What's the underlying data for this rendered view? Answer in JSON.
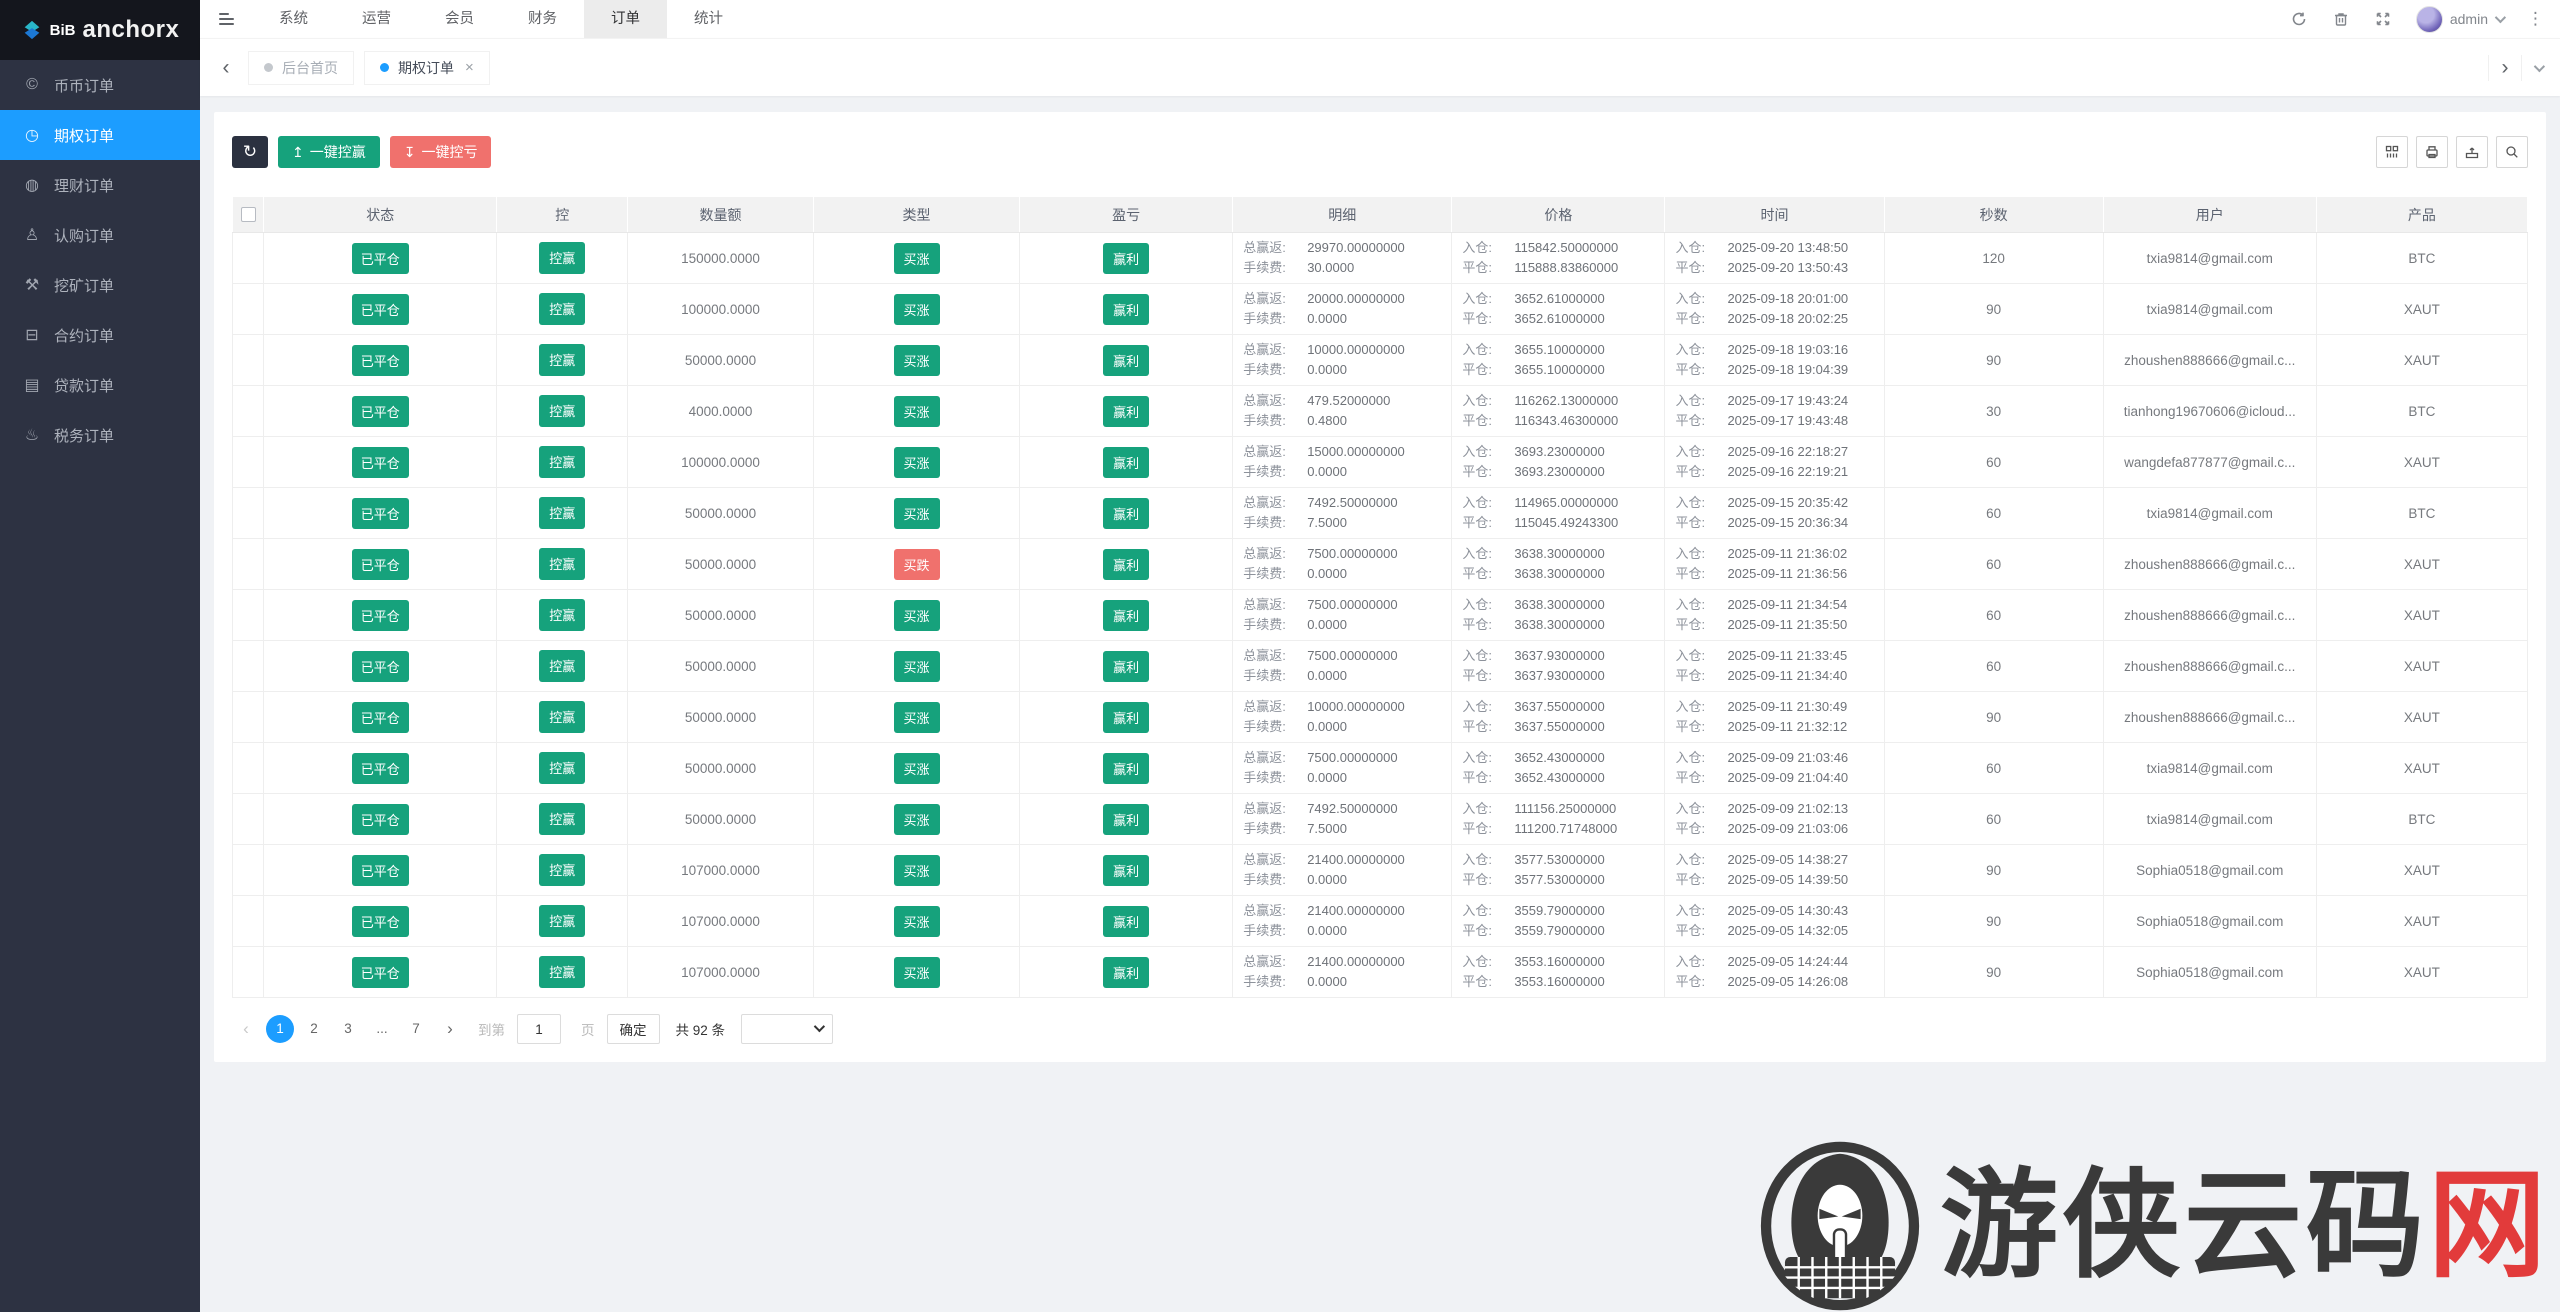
{
  "brand": {
    "short": "BiB",
    "name": "anchorx"
  },
  "topnav": {
    "items": [
      {
        "label": "系统",
        "active": false
      },
      {
        "label": "运营",
        "active": false
      },
      {
        "label": "会员",
        "active": false
      },
      {
        "label": "财务",
        "active": false
      },
      {
        "label": "订单",
        "active": true
      },
      {
        "label": "统计",
        "active": false
      }
    ],
    "user": "admin"
  },
  "sidebar": {
    "items": [
      {
        "id": "coin-orders",
        "label": "币币订单",
        "icon": "coins-icon",
        "glyph": "©",
        "active": false
      },
      {
        "id": "option-orders",
        "label": "期权订单",
        "icon": "clock-icon",
        "glyph": "◷",
        "active": true
      },
      {
        "id": "finance-orders",
        "label": "理财订单",
        "icon": "wallet-icon",
        "glyph": "◍",
        "active": false
      },
      {
        "id": "subscribe-orders",
        "label": "认购订单",
        "icon": "person-icon",
        "glyph": "♙",
        "active": false
      },
      {
        "id": "mining-orders",
        "label": "挖矿订单",
        "icon": "pickaxe-icon",
        "glyph": "⚒",
        "active": false
      },
      {
        "id": "contract-orders",
        "label": "合约订单",
        "icon": "monitor-icon",
        "glyph": "⊟",
        "active": false
      },
      {
        "id": "loan-orders",
        "label": "贷款订单",
        "icon": "banknote-icon",
        "glyph": "▤",
        "active": false
      },
      {
        "id": "tax-orders",
        "label": "税务订单",
        "icon": "stamp-icon",
        "glyph": "♨",
        "active": false
      }
    ]
  },
  "tabs": [
    {
      "label": "后台首页",
      "active": false,
      "closable": false
    },
    {
      "label": "期权订单",
      "active": true,
      "closable": true
    }
  ],
  "toolbar": {
    "refresh_glyph": "↻",
    "win_all_icon": "↥",
    "win_all": "一键控赢",
    "lose_all_icon": "↧",
    "lose_all": "一键控亏"
  },
  "table": {
    "headers": [
      "状态",
      "控",
      "数量额",
      "类型",
      "盈亏",
      "明细",
      "价格",
      "时间",
      "秒数",
      "用户",
      "产品"
    ],
    "detail_labels": {
      "total_win": "总赢返:",
      "fee": "手续费:",
      "open": "入仓:",
      "close": "平仓:"
    },
    "rows": [
      {
        "status": "已平仓",
        "control": "控赢",
        "amount": "150000.0000",
        "type": "买涨",
        "dir": "up",
        "profit": "赢利",
        "win": "29970.00000000",
        "fee": "30.0000",
        "open_price": "115842.50000000",
        "close_price": "115888.83860000",
        "open_time": "2025-09-20 13:48:50",
        "close_time": "2025-09-20 13:50:43",
        "seconds": "120",
        "user": "txia9814@gmail.com",
        "product": "BTC"
      },
      {
        "status": "已平仓",
        "control": "控赢",
        "amount": "100000.0000",
        "type": "买涨",
        "dir": "up",
        "profit": "赢利",
        "win": "20000.00000000",
        "fee": "0.0000",
        "open_price": "3652.61000000",
        "close_price": "3652.61000000",
        "open_time": "2025-09-18 20:01:00",
        "close_time": "2025-09-18 20:02:25",
        "seconds": "90",
        "user": "txia9814@gmail.com",
        "product": "XAUT"
      },
      {
        "status": "已平仓",
        "control": "控赢",
        "amount": "50000.0000",
        "type": "买涨",
        "dir": "up",
        "profit": "赢利",
        "win": "10000.00000000",
        "fee": "0.0000",
        "open_price": "3655.10000000",
        "close_price": "3655.10000000",
        "open_time": "2025-09-18 19:03:16",
        "close_time": "2025-09-18 19:04:39",
        "seconds": "90",
        "user": "zhoushen888666@gmail.c...",
        "product": "XAUT"
      },
      {
        "status": "已平仓",
        "control": "控赢",
        "amount": "4000.0000",
        "type": "买涨",
        "dir": "up",
        "profit": "赢利",
        "win": "479.52000000",
        "fee": "0.4800",
        "open_price": "116262.13000000",
        "close_price": "116343.46300000",
        "open_time": "2025-09-17 19:43:24",
        "close_time": "2025-09-17 19:43:48",
        "seconds": "30",
        "user": "tianhong19670606@icloud...",
        "product": "BTC"
      },
      {
        "status": "已平仓",
        "control": "控赢",
        "amount": "100000.0000",
        "type": "买涨",
        "dir": "up",
        "profit": "赢利",
        "win": "15000.00000000",
        "fee": "0.0000",
        "open_price": "3693.23000000",
        "close_price": "3693.23000000",
        "open_time": "2025-09-16 22:18:27",
        "close_time": "2025-09-16 22:19:21",
        "seconds": "60",
        "user": "wangdefa877877@gmail.c...",
        "product": "XAUT"
      },
      {
        "status": "已平仓",
        "control": "控赢",
        "amount": "50000.0000",
        "type": "买涨",
        "dir": "up",
        "profit": "赢利",
        "win": "7492.50000000",
        "fee": "7.5000",
        "open_price": "114965.00000000",
        "close_price": "115045.49243300",
        "open_time": "2025-09-15 20:35:42",
        "close_time": "2025-09-15 20:36:34",
        "seconds": "60",
        "user": "txia9814@gmail.com",
        "product": "BTC"
      },
      {
        "status": "已平仓",
        "control": "控赢",
        "amount": "50000.0000",
        "type": "买跌",
        "dir": "down",
        "profit": "赢利",
        "win": "7500.00000000",
        "fee": "0.0000",
        "open_price": "3638.30000000",
        "close_price": "3638.30000000",
        "open_time": "2025-09-11 21:36:02",
        "close_time": "2025-09-11 21:36:56",
        "seconds": "60",
        "user": "zhoushen888666@gmail.c...",
        "product": "XAUT"
      },
      {
        "status": "已平仓",
        "control": "控赢",
        "amount": "50000.0000",
        "type": "买涨",
        "dir": "up",
        "profit": "赢利",
        "win": "7500.00000000",
        "fee": "0.0000",
        "open_price": "3638.30000000",
        "close_price": "3638.30000000",
        "open_time": "2025-09-11 21:34:54",
        "close_time": "2025-09-11 21:35:50",
        "seconds": "60",
        "user": "zhoushen888666@gmail.c...",
        "product": "XAUT"
      },
      {
        "status": "已平仓",
        "control": "控赢",
        "amount": "50000.0000",
        "type": "买涨",
        "dir": "up",
        "profit": "赢利",
        "win": "7500.00000000",
        "fee": "0.0000",
        "open_price": "3637.93000000",
        "close_price": "3637.93000000",
        "open_time": "2025-09-11 21:33:45",
        "close_time": "2025-09-11 21:34:40",
        "seconds": "60",
        "user": "zhoushen888666@gmail.c...",
        "product": "XAUT"
      },
      {
        "status": "已平仓",
        "control": "控赢",
        "amount": "50000.0000",
        "type": "买涨",
        "dir": "up",
        "profit": "赢利",
        "win": "10000.00000000",
        "fee": "0.0000",
        "open_price": "3637.55000000",
        "close_price": "3637.55000000",
        "open_time": "2025-09-11 21:30:49",
        "close_time": "2025-09-11 21:32:12",
        "seconds": "90",
        "user": "zhoushen888666@gmail.c...",
        "product": "XAUT"
      },
      {
        "status": "已平仓",
        "control": "控赢",
        "amount": "50000.0000",
        "type": "买涨",
        "dir": "up",
        "profit": "赢利",
        "win": "7500.00000000",
        "fee": "0.0000",
        "open_price": "3652.43000000",
        "close_price": "3652.43000000",
        "open_time": "2025-09-09 21:03:46",
        "close_time": "2025-09-09 21:04:40",
        "seconds": "60",
        "user": "txia9814@gmail.com",
        "product": "XAUT"
      },
      {
        "status": "已平仓",
        "control": "控赢",
        "amount": "50000.0000",
        "type": "买涨",
        "dir": "up",
        "profit": "赢利",
        "win": "7492.50000000",
        "fee": "7.5000",
        "open_price": "111156.25000000",
        "close_price": "111200.71748000",
        "open_time": "2025-09-09 21:02:13",
        "close_time": "2025-09-09 21:03:06",
        "seconds": "60",
        "user": "txia9814@gmail.com",
        "product": "BTC"
      },
      {
        "status": "已平仓",
        "control": "控赢",
        "amount": "107000.0000",
        "type": "买涨",
        "dir": "up",
        "profit": "赢利",
        "win": "21400.00000000",
        "fee": "0.0000",
        "open_price": "3577.53000000",
        "close_price": "3577.53000000",
        "open_time": "2025-09-05 14:38:27",
        "close_time": "2025-09-05 14:39:50",
        "seconds": "90",
        "user": "Sophia0518@gmail.com",
        "product": "XAUT"
      },
      {
        "status": "已平仓",
        "control": "控赢",
        "amount": "107000.0000",
        "type": "买涨",
        "dir": "up",
        "profit": "赢利",
        "win": "21400.00000000",
        "fee": "0.0000",
        "open_price": "3559.79000000",
        "close_price": "3559.79000000",
        "open_time": "2025-09-05 14:30:43",
        "close_time": "2025-09-05 14:32:05",
        "seconds": "90",
        "user": "Sophia0518@gmail.com",
        "product": "XAUT"
      },
      {
        "status": "已平仓",
        "control": "控赢",
        "amount": "107000.0000",
        "type": "买涨",
        "dir": "up",
        "profit": "赢利",
        "win": "21400.00000000",
        "fee": "0.0000",
        "open_price": "3553.16000000",
        "close_price": "3553.16000000",
        "open_time": "2025-09-05 14:24:44",
        "close_time": "2025-09-05 14:26:08",
        "seconds": "90",
        "user": "Sophia0518@gmail.com",
        "product": "XAUT"
      }
    ]
  },
  "pagination": {
    "prev": "‹",
    "next": "›",
    "pages": [
      "1",
      "2",
      "3",
      "...",
      "7"
    ],
    "active": "1",
    "goto_prefix": "到第",
    "goto_value": "1",
    "goto_suffix": "页",
    "confirm": "确定",
    "total": "共 92 条"
  },
  "watermark": {
    "text_main": "游侠云码",
    "text_accent": "网"
  },
  "colors": {
    "accent_blue": "#1c9dff",
    "green": "#16a27c",
    "red": "#f0716d",
    "sidebar_dark": "#2d3242",
    "topbar_dark_btn": "#2b3140"
  }
}
